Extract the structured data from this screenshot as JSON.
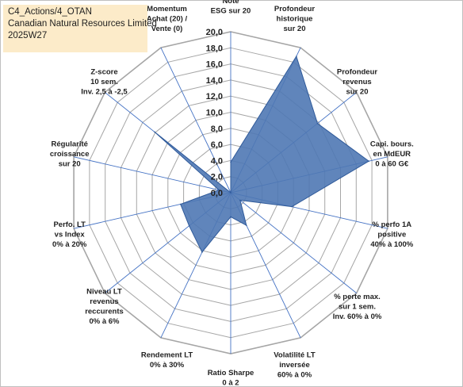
{
  "header": {
    "line1": "C4_Actions/4_OTAN",
    "line2": "Canadian Natural Resources Limited",
    "line3": "2025W27"
  },
  "chart_data": {
    "type": "radar",
    "title": "",
    "axes": [
      [
        "Note",
        "ESG sur 20"
      ],
      [
        "Profondeur",
        "historique",
        "sur 20"
      ],
      [
        "Profondeur",
        "revenus",
        "sur 20"
      ],
      [
        "Capi. bours.",
        "en MdEUR",
        "0 à 60 G€"
      ],
      [
        "% perfo 1A",
        "positive",
        "40% à 100%"
      ],
      [
        "% perte max.",
        "sur 1 sem.",
        "Inv. 60% à 0%"
      ],
      [
        "Volatilité LT",
        "inversée",
        "60% à 0%"
      ],
      [
        "Ratio Sharpe",
        "0 à 2"
      ],
      [
        "Rendement LT",
        "0% à 30%"
      ],
      [
        "Niveau LT",
        "revenus",
        "reccurents",
        "0% à 6%"
      ],
      [
        "Perfo. LT",
        "vs Index",
        "0% à 20%"
      ],
      [
        "Régularité",
        "croissance",
        "sur 20"
      ],
      [
        "Z-score",
        "10 sem.",
        "Inv. 2,5 à -2,5"
      ],
      [
        "Momentum",
        "Achat (20) /",
        "Vente (0)"
      ]
    ],
    "values": [
      3.8,
      18.8,
      13.8,
      17.6,
      7.8,
      1.5,
      4.5,
      3.0,
      8.2,
      6.6,
      6.4,
      1.5,
      12.1,
      0.0
    ],
    "rlim": [
      0,
      20
    ],
    "r_ticks": [
      "0,0",
      "2,0",
      "4,0",
      "6,0",
      "8,0",
      "10,0",
      "12,0",
      "14,0",
      "16,0",
      "18,0",
      "20,0"
    ],
    "grid": true,
    "legend": "none",
    "colors": {
      "fill": "#4f78b4",
      "stroke": "#2f5a9a",
      "grid": "#a6a6a6",
      "spoke": "#4472c4"
    }
  }
}
